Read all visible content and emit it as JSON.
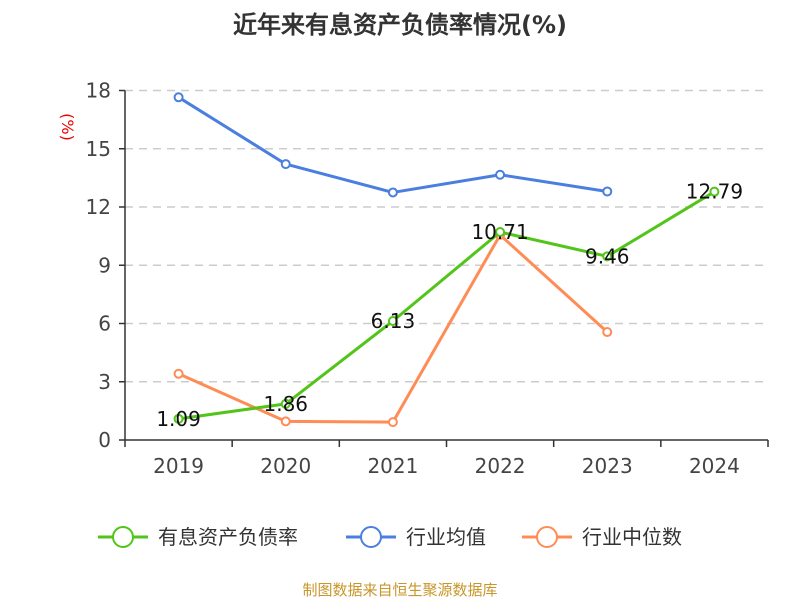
{
  "chart_data": {
    "type": "line",
    "title": "近年来有息资产负债率情况(%)",
    "ylabel": "(%)",
    "xlabel": "",
    "categories": [
      "2019",
      "2020",
      "2021",
      "2022",
      "2023",
      "2024"
    ],
    "ylim": [
      0,
      18
    ],
    "yticks": [
      "0",
      "3",
      "6",
      "9",
      "12",
      "15",
      "18"
    ],
    "grid": true,
    "legend_position": "bottom",
    "series": [
      {
        "name": "有息资产负债率",
        "color": "#52c41a",
        "values": [
          1.09,
          1.86,
          6.13,
          10.71,
          9.46,
          12.79
        ],
        "labels": [
          "1.09",
          "1.86",
          "6.13",
          "10.71",
          "9.46",
          "12.79"
        ]
      },
      {
        "name": "行业均值",
        "color": "#4a7fe0",
        "values": [
          17.65,
          14.21,
          12.75,
          13.66,
          12.8,
          null
        ]
      },
      {
        "name": "行业中位数",
        "color": "#ff8c55",
        "values": [
          3.41,
          0.96,
          0.92,
          10.56,
          5.56,
          null
        ]
      }
    ]
  },
  "source": "制图数据来自恒生聚源数据库"
}
